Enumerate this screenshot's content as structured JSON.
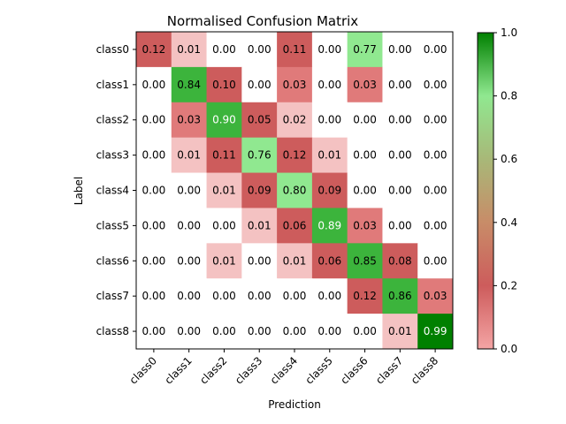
{
  "chart_data": {
    "type": "heatmap",
    "title": "Normalised Confusion Matrix",
    "xlabel": "Prediction",
    "ylabel": "Label",
    "x_categories": [
      "class0",
      "class1",
      "class2",
      "class3",
      "class4",
      "class5",
      "class6",
      "class7",
      "class8"
    ],
    "y_categories": [
      "class0",
      "class1",
      "class2",
      "class3",
      "class4",
      "class5",
      "class6",
      "class7",
      "class8"
    ],
    "values": [
      [
        0.12,
        0.01,
        0.0,
        0.0,
        0.11,
        0.0,
        0.77,
        0.0,
        0.0
      ],
      [
        0.0,
        0.84,
        0.1,
        0.0,
        0.03,
        0.0,
        0.03,
        0.0,
        0.0
      ],
      [
        0.0,
        0.03,
        0.9,
        0.05,
        0.02,
        0.0,
        0.0,
        0.0,
        0.0
      ],
      [
        0.0,
        0.01,
        0.11,
        0.76,
        0.12,
        0.01,
        0.0,
        0.0,
        0.0
      ],
      [
        0.0,
        0.0,
        0.01,
        0.09,
        0.8,
        0.09,
        0.0,
        0.0,
        0.0
      ],
      [
        0.0,
        0.0,
        0.0,
        0.01,
        0.06,
        0.89,
        0.03,
        0.0,
        0.0
      ],
      [
        0.0,
        0.0,
        0.01,
        0.0,
        0.01,
        0.06,
        0.85,
        0.08,
        0.0
      ],
      [
        0.0,
        0.0,
        0.0,
        0.0,
        0.0,
        0.0,
        0.12,
        0.86,
        0.03
      ],
      [
        0.0,
        0.0,
        0.0,
        0.0,
        0.0,
        0.0,
        0.0,
        0.01,
        0.99
      ]
    ],
    "colorbar": {
      "range": [
        0.0,
        1.0
      ],
      "ticks": [
        "0.0",
        "0.2",
        "0.4",
        "0.6",
        "0.8",
        "1.0"
      ]
    },
    "colors": {
      "zero": "#ffffff",
      "low": "#f4c2c2",
      "mid_low": "#e07a7a",
      "mid": "#cd5c5c",
      "high_light": "#90e890",
      "high": "#3cb43c",
      "max": "#008000"
    }
  }
}
